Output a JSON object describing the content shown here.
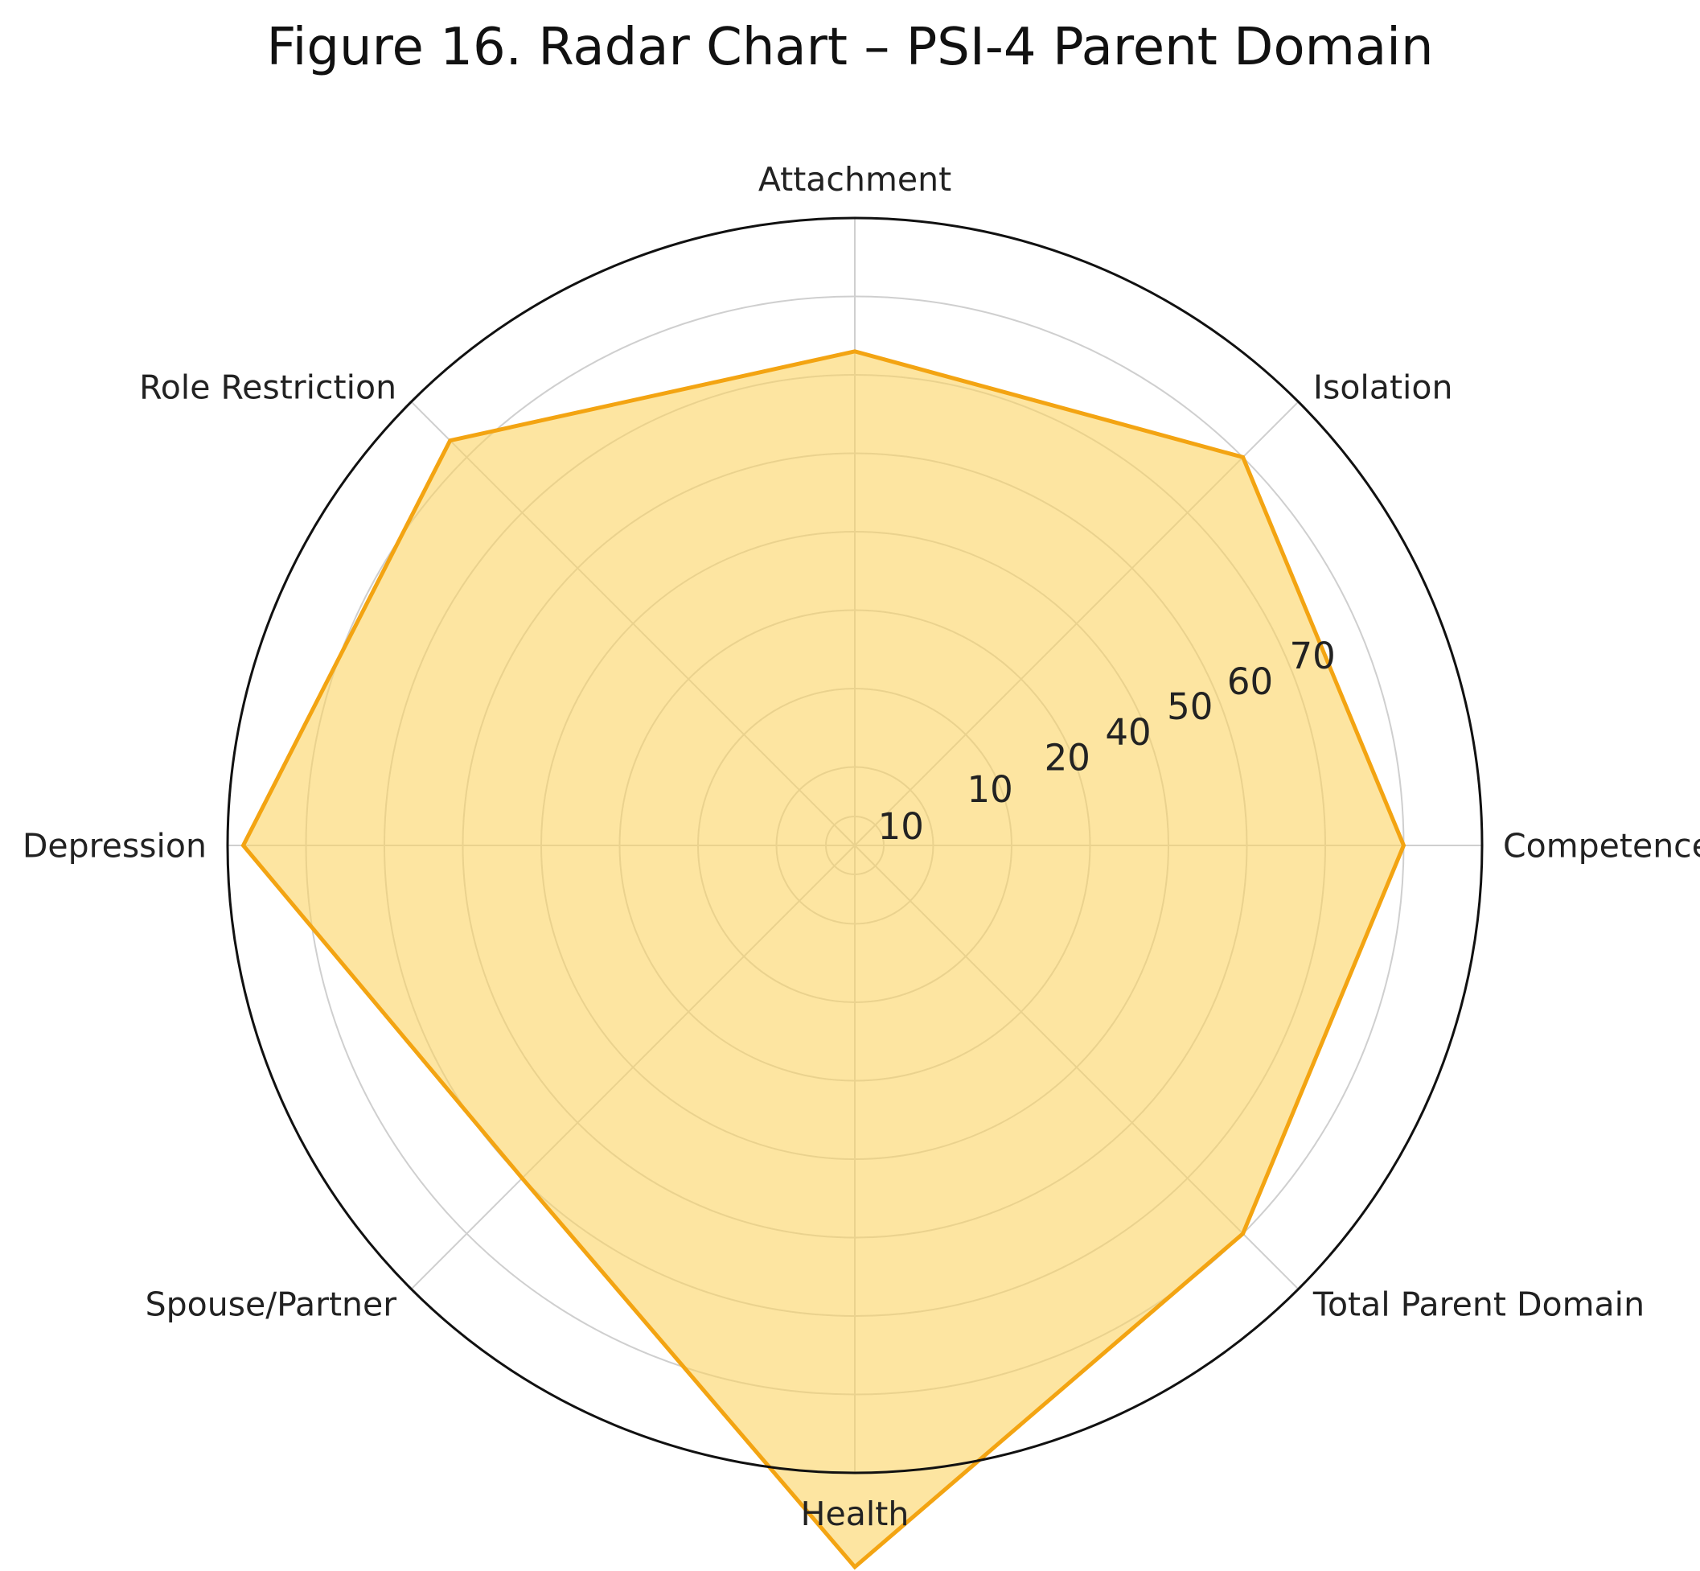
{
  "chart_data": {
    "type": "radar",
    "title": "Figure 16. Radar Chart – PSI-4 Parent Domain",
    "categories": [
      "Competence",
      "Isolation",
      "Attachment",
      "Role Restriction",
      "Depression",
      "Spouse/Partner",
      "Health",
      "Total Parent Domain"
    ],
    "series": [
      {
        "values": [
          70,
          70,
          63,
          73,
          78,
          60,
          92,
          70
        ]
      }
    ],
    "radial_tick_labels": [
      "10",
      "10",
      "20",
      "40",
      "50",
      "60",
      "70"
    ],
    "rlim": [
      0,
      80
    ],
    "grid": true,
    "colors": {
      "line": "#F3A412",
      "fill": "#FBD462",
      "grid": "#cfcfcf",
      "frame": "#111111"
    }
  }
}
